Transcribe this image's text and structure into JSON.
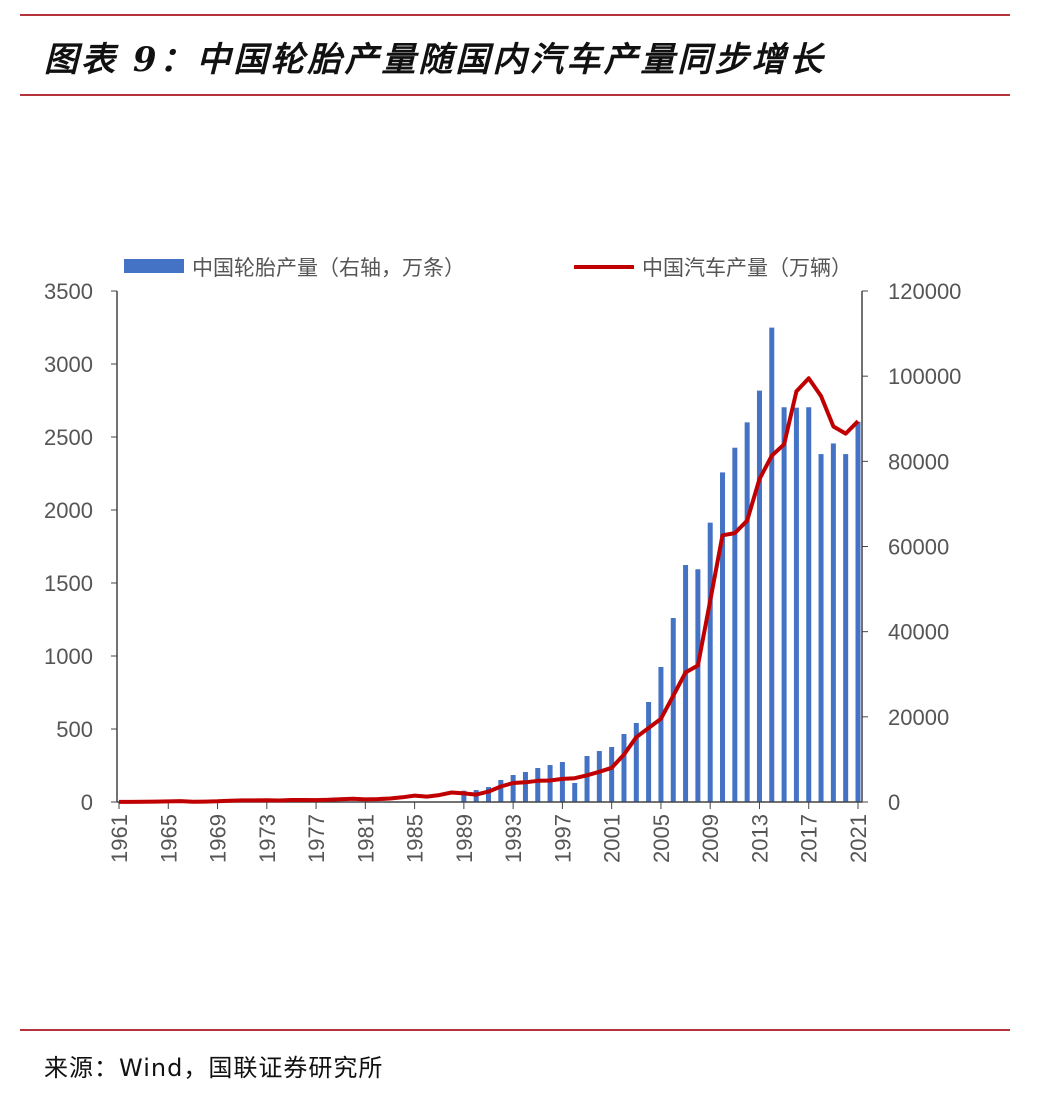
{
  "title": "图表 9：中国轮胎产量随国内汽车产量同步增长",
  "source": "来源：Wind，国联证券研究所",
  "colors": {
    "bars": "#4472C4",
    "line": "#C00000",
    "rules": "#b5343c"
  },
  "chart_data": {
    "type": "bar+line",
    "title": "",
    "legend_position": "top",
    "grid": false,
    "x": [
      1961,
      1962,
      1963,
      1964,
      1965,
      1966,
      1967,
      1968,
      1969,
      1970,
      1971,
      1972,
      1973,
      1974,
      1975,
      1976,
      1977,
      1978,
      1979,
      1980,
      1981,
      1982,
      1983,
      1984,
      1985,
      1986,
      1987,
      1988,
      1989,
      1990,
      1991,
      1992,
      1993,
      1994,
      1995,
      1996,
      1997,
      1998,
      1999,
      2000,
      2001,
      2002,
      2003,
      2004,
      2005,
      2006,
      2007,
      2008,
      2009,
      2010,
      2011,
      2012,
      2013,
      2014,
      2015,
      2016,
      2017,
      2018,
      2019,
      2020,
      2021
    ],
    "x_tick_labels": [
      "1961",
      "1965",
      "1969",
      "1973",
      "1977",
      "1981",
      "1985",
      "1989",
      "1993",
      "1997",
      "2001",
      "2005",
      "2009",
      "2013",
      "2017",
      "2021"
    ],
    "left_axis": {
      "ylim": [
        0,
        3500
      ],
      "ticks": [
        "0",
        "500",
        "1000",
        "1500",
        "2000",
        "2500",
        "3000",
        "3500"
      ]
    },
    "right_axis": {
      "ylim": [
        0,
        120000
      ],
      "ticks": [
        "0",
        "20000",
        "40000",
        "60000",
        "80000",
        "100000",
        "120000"
      ]
    },
    "series": [
      {
        "name": "中国轮胎产量（右轴，万条）",
        "type": "bar",
        "axis": "right",
        "values": [
          null,
          null,
          null,
          null,
          null,
          null,
          null,
          null,
          null,
          null,
          null,
          null,
          null,
          null,
          null,
          null,
          null,
          null,
          null,
          null,
          null,
          null,
          null,
          null,
          null,
          null,
          null,
          null,
          2650,
          2800,
          3500,
          5170,
          6340,
          7050,
          7990,
          8680,
          9390,
          4460,
          10800,
          11970,
          12920,
          15970,
          18550,
          23480,
          31700,
          43200,
          55650,
          54650,
          65600,
          77400,
          83200,
          89150,
          96600,
          111400,
          92700,
          92600,
          92700,
          81700,
          84200,
          81700,
          89300
        ]
      },
      {
        "name": "中国汽车产量（万辆）",
        "type": "line",
        "axis": "left",
        "values": [
          0.4,
          1,
          2,
          3,
          4,
          6,
          2,
          3,
          5,
          9,
          11,
          11,
          12,
          10,
          14,
          14,
          13,
          15,
          19,
          22,
          18,
          20,
          24,
          32,
          44,
          37,
          47,
          65,
          59,
          51,
          71,
          106,
          130,
          135,
          145,
          147,
          158,
          163,
          183,
          207,
          234,
          325,
          444,
          507,
          570,
          728,
          888,
          935,
          1379,
          1827,
          1842,
          1927,
          2212,
          2372,
          2450,
          2812,
          2902,
          2781,
          2572,
          2523,
          2608
        ]
      }
    ]
  }
}
